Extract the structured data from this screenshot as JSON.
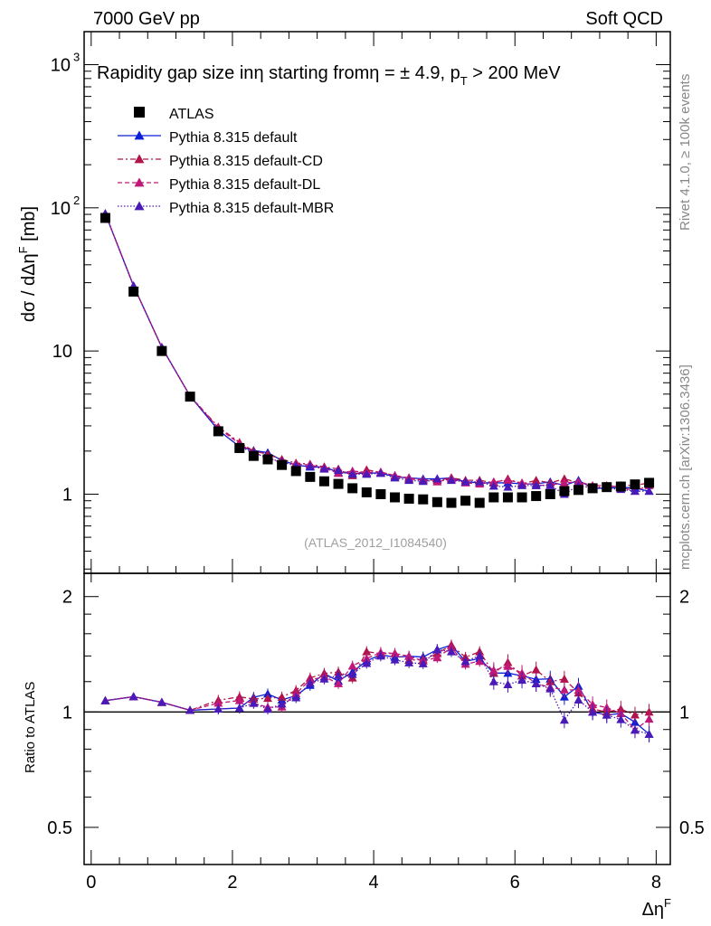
{
  "header": {
    "left": "7000 GeV pp",
    "right": "Soft QCD",
    "side_rivet": "Rivet 4.1.0, ≥ 100k events",
    "side_mcplots": "mcplots.cern.ch [arXiv:1306.3436]",
    "watermark": "(ATLAS_2012_I1084540)"
  },
  "chart_data": {
    "type": "scatter",
    "title_main": "Rapidity gap size in",
    "title_eta": "η",
    "title_start": " starting from",
    "title_range": "η = ± 4.9, p",
    "title_pt_sub": "T",
    "title_cut": " > 200 MeV",
    "xlabel": "Δη",
    "xlabel_sup": "F",
    "ylabel_main": "dσ / dΔη",
    "ylabel_sup": "F",
    "ylabel_unit": " [mb]",
    "ylabel_ratio": "Ratio to ATLAS",
    "xlim": [
      -0.1,
      8.2
    ],
    "ylim_main": [
      0.28,
      1700
    ],
    "ylim_ratio": [
      0.4,
      2.3
    ],
    "y_scale": "log",
    "x_ticks": [
      "0",
      "2",
      "4",
      "6",
      "8"
    ],
    "y_ticks_main": [
      "1",
      "10",
      "10",
      "10"
    ],
    "y_ticks_main_sup": [
      "",
      "",
      "2",
      "3"
    ],
    "y_ticks_ratio": [
      "0.5",
      "1",
      "2"
    ],
    "legend": [
      {
        "name": "ATLAS",
        "color": "#000000",
        "marker": "square",
        "line": "none"
      },
      {
        "name": "Pythia 8.315 default",
        "color": "#0b1fd6",
        "marker": "triangle",
        "line": "solid"
      },
      {
        "name": "Pythia 8.315 default-CD",
        "color": "#b0144a",
        "marker": "triangle",
        "line": "dashdot"
      },
      {
        "name": "Pythia 8.315 default-DL",
        "color": "#c01878",
        "marker": "triangle",
        "line": "dashed"
      },
      {
        "name": "Pythia 8.315 default-MBR",
        "color": "#4a1ab8",
        "marker": "triangle",
        "line": "dotted"
      }
    ],
    "x": [
      0.2,
      0.6,
      1.0,
      1.4,
      1.8,
      2.1,
      2.3,
      2.5,
      2.7,
      2.9,
      3.1,
      3.3,
      3.5,
      3.7,
      3.9,
      4.1,
      4.3,
      4.5,
      4.7,
      4.9,
      5.1,
      5.3,
      5.5,
      5.7,
      5.9,
      6.1,
      6.3,
      6.5,
      6.7,
      6.9,
      7.1,
      7.3,
      7.5,
      7.7,
      7.9
    ],
    "atlas": [
      85,
      26,
      10,
      4.8,
      2.75,
      2.1,
      1.85,
      1.75,
      1.6,
      1.45,
      1.32,
      1.23,
      1.18,
      1.1,
      1.03,
      1.0,
      0.95,
      0.93,
      0.92,
      0.88,
      0.87,
      0.9,
      0.87,
      0.95,
      0.95,
      0.95,
      0.97,
      1.0,
      1.05,
      1.07,
      1.1,
      1.12,
      1.13,
      1.17,
      1.2
    ],
    "series": [
      {
        "name": "Pythia 8.315 default",
        "values": [
          91,
          28.5,
          10.6,
          4.85,
          2.8,
          2.15,
          2.02,
          1.95,
          1.72,
          1.6,
          1.55,
          1.55,
          1.42,
          1.4,
          1.4,
          1.41,
          1.32,
          1.3,
          1.28,
          1.28,
          1.3,
          1.22,
          1.2,
          1.2,
          1.2,
          1.18,
          1.18,
          1.22,
          1.15,
          1.25,
          1.1,
          1.1,
          1.12,
          1.1,
          1.05
        ]
      },
      {
        "name": "Pythia 8.315 default-CD",
        "values": [
          91,
          28.5,
          10.6,
          4.85,
          2.95,
          2.3,
          2.0,
          1.9,
          1.75,
          1.65,
          1.62,
          1.55,
          1.5,
          1.35,
          1.48,
          1.42,
          1.35,
          1.27,
          1.26,
          1.25,
          1.3,
          1.25,
          1.25,
          1.2,
          1.28,
          1.18,
          1.25,
          1.2,
          1.28,
          1.2,
          1.12,
          1.12,
          1.15,
          1.15,
          1.2
        ]
      },
      {
        "name": "Pythia 8.315 default-DL",
        "values": [
          91,
          28.5,
          10.6,
          4.85,
          2.9,
          2.25,
          1.95,
          1.8,
          1.65,
          1.62,
          1.6,
          1.52,
          1.4,
          1.45,
          1.42,
          1.43,
          1.35,
          1.3,
          1.25,
          1.22,
          1.28,
          1.2,
          1.18,
          1.22,
          1.25,
          1.2,
          1.15,
          1.16,
          1.2,
          1.22,
          1.15,
          1.15,
          1.12,
          1.05,
          1.15
        ]
      },
      {
        "name": "Pythia 8.315 default-MBR",
        "values": [
          91,
          28.5,
          10.6,
          4.85,
          2.8,
          2.15,
          1.95,
          1.78,
          1.68,
          1.58,
          1.57,
          1.5,
          1.47,
          1.38,
          1.38,
          1.4,
          1.3,
          1.25,
          1.23,
          1.28,
          1.25,
          1.22,
          1.22,
          1.14,
          1.12,
          1.15,
          1.15,
          1.15,
          1.0,
          1.15,
          1.1,
          1.1,
          1.08,
          1.05,
          1.05
        ]
      }
    ]
  }
}
